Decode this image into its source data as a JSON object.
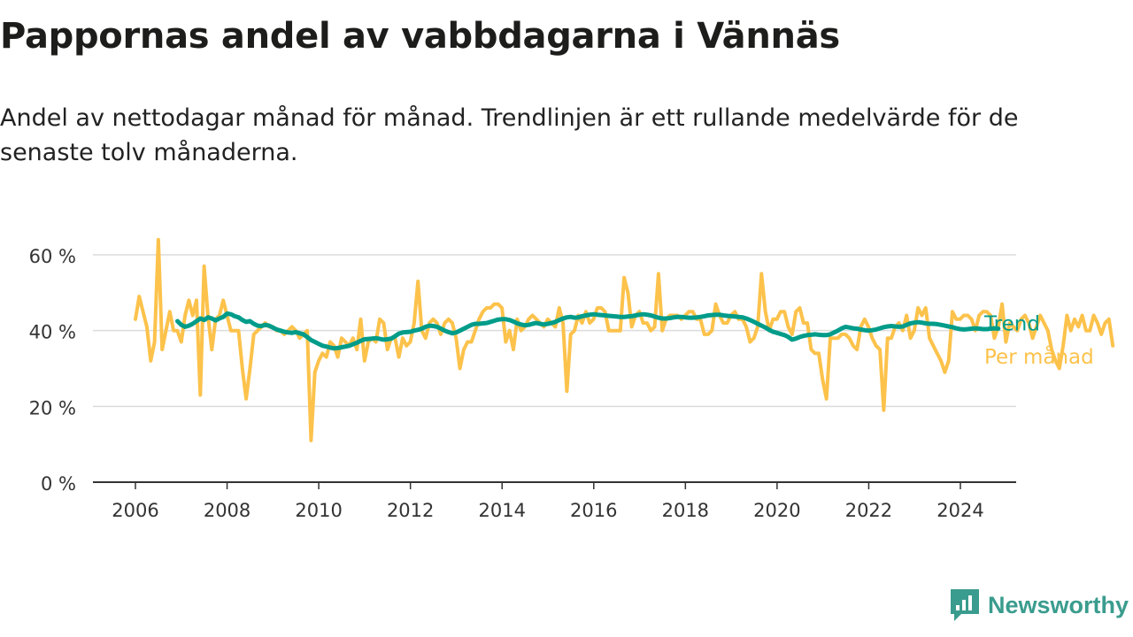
{
  "header": {
    "title": "Pappornas andel av vabbdagarna i Vännäs",
    "subtitle": "Andel av nettodagar månad för månad. Trendlinjen är ett rullande medelvärde för de senaste tolv månaderna."
  },
  "brand": {
    "name": "Newsworthy",
    "icon": "newsworthy-logo-icon",
    "color": "#3a9c8e"
  },
  "chart_data": {
    "type": "line",
    "title": "Pappornas andel av vabbdagarna i Vännäs",
    "subtitle": "Andel av nettodagar månad för månad. Trendlinjen är ett rullande medelvärde för de senaste tolv månaderna.",
    "xlabel": "",
    "ylabel": "",
    "x_ticks": [
      "2006",
      "2008",
      "2010",
      "2012",
      "2014",
      "2016",
      "2018",
      "2020",
      "2022",
      "2024"
    ],
    "y_ticks": [
      "0 %",
      "20 %",
      "40 %",
      "60 %"
    ],
    "xlim": [
      2005.0,
      2025.0
    ],
    "ylim": [
      0,
      70
    ],
    "grid": "horizontal",
    "legend": "inline labels at line ends (right)",
    "series": [
      {
        "name": "Per månad",
        "color": "#fcc24b",
        "start": 2006.0,
        "step": 0.0833,
        "values": [
          43,
          49,
          45,
          41,
          32,
          37,
          64,
          35,
          40,
          45,
          40,
          40,
          37,
          44,
          48,
          44,
          48,
          23,
          57,
          44,
          35,
          43,
          44,
          48,
          44,
          40,
          40,
          40,
          30,
          22,
          30,
          39,
          40,
          41,
          42,
          41,
          41,
          40,
          40,
          39,
          40,
          41,
          40,
          38,
          39,
          40,
          11,
          29,
          32,
          34,
          33,
          37,
          36,
          33,
          38,
          37,
          36,
          38,
          35,
          43,
          32,
          37,
          38,
          37,
          43,
          42,
          35,
          38,
          38,
          33,
          38,
          36,
          37,
          42,
          53,
          40,
          38,
          42,
          43,
          42,
          39,
          42,
          43,
          42,
          38,
          30,
          35,
          37,
          37,
          40,
          43,
          45,
          46,
          46,
          47,
          47,
          46,
          37,
          40,
          35,
          43,
          40,
          41,
          43,
          44,
          43,
          42,
          41,
          43,
          42,
          41,
          46,
          42,
          24,
          39,
          40,
          44,
          42,
          45,
          42,
          43,
          46,
          46,
          45,
          40,
          40,
          40,
          40,
          54,
          50,
          41,
          44,
          45,
          42,
          42,
          40,
          41,
          55,
          40,
          43,
          44,
          44,
          44,
          43,
          44,
          45,
          45,
          43,
          43,
          39,
          39,
          40,
          47,
          44,
          42,
          42,
          44,
          45,
          43,
          43,
          41,
          37,
          38,
          41,
          55,
          45,
          40,
          43,
          43,
          45,
          45,
          41,
          39,
          45,
          46,
          42,
          42,
          35,
          34,
          34,
          27,
          22,
          38,
          38,
          38,
          39,
          39,
          38,
          36,
          35,
          41,
          43,
          41,
          38,
          36,
          35,
          19,
          38,
          38,
          41,
          42,
          40,
          44,
          38,
          40,
          46,
          44,
          46,
          38,
          36,
          34,
          32,
          29,
          32,
          45,
          43,
          43,
          44,
          44,
          43,
          40,
          44,
          45,
          45,
          44,
          38,
          41,
          47,
          37,
          42,
          41,
          40,
          43,
          44,
          42,
          38,
          41,
          44,
          42,
          40,
          35,
          32,
          30,
          36,
          44,
          40,
          43,
          41,
          44,
          40,
          40,
          44,
          42,
          39,
          42,
          43,
          36
        ]
      },
      {
        "name": "Trend",
        "color": "#009c8a",
        "start": 2006.917,
        "step": 0.0833,
        "values": [
          42.5,
          41.5,
          41,
          41.3,
          41.8,
          42.5,
          43.2,
          42.8,
          43.5,
          43.2,
          42.7,
          43.2,
          43.6,
          44.5,
          44.3,
          43.8,
          43.5,
          42.8,
          42.3,
          42.5,
          41.8,
          41.3,
          41.2,
          41.5,
          41.3,
          40.8,
          40.3,
          40,
          39.7,
          39.5,
          39.4,
          39.6,
          39.3,
          39,
          38.3,
          37.5,
          37,
          36.5,
          36,
          35.8,
          35.5,
          35.3,
          35.4,
          35.6,
          35.8,
          36,
          36.4,
          36.8,
          37.3,
          37.7,
          37.8,
          37.9,
          38,
          37.8,
          37.6,
          37.7,
          37.9,
          38.5,
          39.2,
          39.5,
          39.6,
          39.7,
          40,
          40.2,
          40.5,
          41,
          41.3,
          41.2,
          41,
          40.5,
          40,
          39.6,
          39.3,
          39.5,
          40,
          40.5,
          41,
          41.5,
          41.8,
          41.8,
          41.9,
          42,
          42.3,
          42.6,
          42.9,
          43,
          43,
          42.8,
          42.4,
          41.9,
          41.6,
          41.4,
          41.5,
          41.8,
          42,
          41.8,
          41.6,
          41.8,
          42,
          42.3,
          42.8,
          43.2,
          43.5,
          43.6,
          43.4,
          43.5,
          43.8,
          44,
          44.2,
          44.3,
          44.2,
          44.1,
          44,
          43.9,
          43.8,
          43.7,
          43.6,
          43.6,
          43.7,
          43.8,
          44,
          44.2,
          44.3,
          44.2,
          44,
          43.7,
          43.4,
          43.2,
          43.2,
          43.3,
          43.5,
          43.6,
          43.6,
          43.5,
          43.4,
          43.4,
          43.5,
          43.6,
          43.8,
          44,
          44.1,
          44.2,
          44.2,
          44,
          43.9,
          43.8,
          43.7,
          43.6,
          43.5,
          43.2,
          42.8,
          42.3,
          41.8,
          41.3,
          40.8,
          40.2,
          39.7,
          39.4,
          39.1,
          38.8,
          38.3,
          37.6,
          37.9,
          38.3,
          38.6,
          38.8,
          38.9,
          39,
          38.9,
          38.8,
          38.8,
          39,
          39.5,
          40,
          40.6,
          41,
          40.8,
          40.6,
          40.5,
          40.3,
          40.1,
          40,
          40.1,
          40.3,
          40.6,
          40.9,
          41.1,
          41.2,
          41.1,
          41,
          41.1,
          41.5,
          41.9,
          42.1,
          42.2,
          42.1,
          41.9,
          41.8,
          41.8,
          41.7,
          41.5,
          41.3,
          41.1,
          40.9,
          40.6,
          40.4,
          40.3,
          40.4,
          40.5,
          40.6,
          40.5,
          40.4,
          40.4,
          40.5,
          40.6,
          40.5
        ]
      }
    ]
  }
}
